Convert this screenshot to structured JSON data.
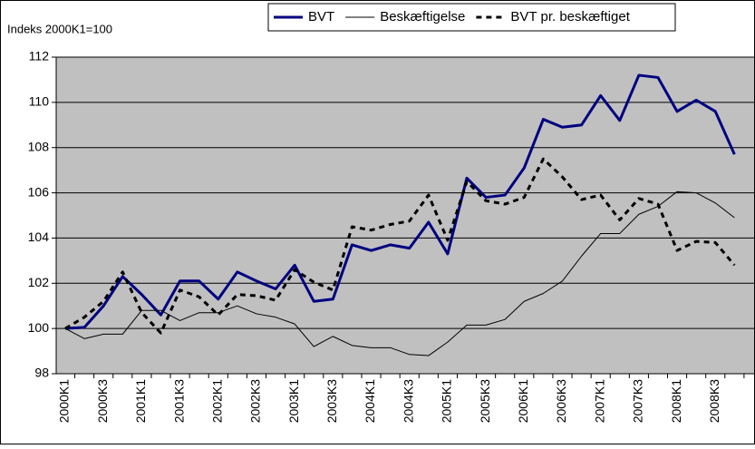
{
  "chart_data": {
    "type": "line",
    "y_label": "Indeks 2000K1=100",
    "categories": [
      "2000K1",
      null,
      "2000K3",
      null,
      "2001K1",
      null,
      "2001K3",
      null,
      "2002K1",
      null,
      "2002K3",
      null,
      "2003K1",
      null,
      "2003K3",
      null,
      "2004K1",
      null,
      "2004K3",
      null,
      "2005K1",
      null,
      "2005K3",
      null,
      "2006K1",
      null,
      "2006K3",
      null,
      "2007K1",
      null,
      "2007K3",
      null,
      "2008K1",
      null,
      "2008K3",
      null
    ],
    "series": [
      {
        "name": "BVT",
        "color": "#000080",
        "width": 3,
        "dash": "none",
        "values": [
          100.0,
          100.05,
          101.0,
          102.3,
          101.5,
          100.6,
          102.1,
          102.1,
          101.3,
          102.5,
          102.1,
          101.75,
          102.8,
          101.2,
          101.3,
          103.7,
          103.45,
          103.7,
          103.55,
          104.7,
          103.3,
          106.65,
          105.8,
          105.9,
          107.1,
          109.25,
          108.9,
          109.0,
          110.3,
          109.2,
          111.2,
          111.1,
          109.6,
          110.1,
          109.6,
          107.7
        ]
      },
      {
        "name": "Beskæftigelse",
        "color": "#000000",
        "width": 1,
        "dash": "none",
        "values": [
          100.0,
          99.55,
          99.75,
          99.75,
          100.8,
          100.8,
          100.35,
          100.7,
          100.7,
          101.0,
          100.65,
          100.5,
          100.2,
          99.2,
          99.65,
          99.25,
          99.15,
          99.15,
          98.85,
          98.8,
          99.4,
          100.15,
          100.15,
          100.4,
          101.2,
          101.55,
          102.1,
          103.2,
          104.2,
          104.2,
          105.05,
          105.4,
          106.05,
          106.0,
          105.55,
          104.9
        ]
      },
      {
        "name": "BVT pr. beskæftiget",
        "color": "#000000",
        "width": 3,
        "dash": "6 5",
        "values": [
          100.0,
          100.5,
          101.2,
          102.5,
          100.7,
          99.8,
          101.7,
          101.4,
          100.6,
          101.5,
          101.45,
          101.25,
          102.6,
          102.05,
          101.7,
          104.5,
          104.35,
          104.6,
          104.75,
          105.9,
          103.9,
          106.5,
          105.65,
          105.5,
          105.8,
          107.5,
          106.7,
          105.7,
          105.9,
          104.8,
          105.75,
          105.5,
          103.45,
          103.85,
          103.8,
          102.8
        ]
      }
    ],
    "ylim": [
      98,
      112
    ],
    "yticks": [
      98,
      100,
      102,
      104,
      106,
      108,
      110,
      112
    ],
    "grid": true,
    "plot_background": "#c0c0c0",
    "legend": "top"
  }
}
